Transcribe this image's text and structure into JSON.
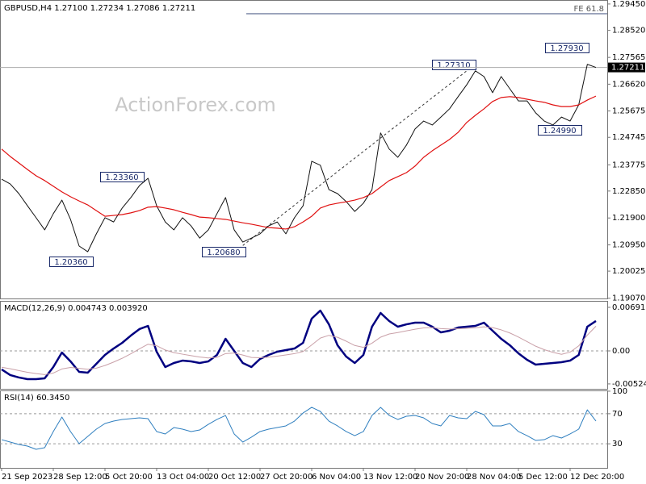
{
  "chart_data": [
    {
      "type": "line",
      "title": "GBPUSD,H4  1.27100 1.27234 1.27086 1.27211",
      "watermark": "ActionForex.com",
      "fe_label": "FE 61.8",
      "annotations": [
        "1.23360",
        "1.20360",
        "1.20680",
        "1.27310",
        "1.27930",
        "1.24990"
      ],
      "current_price": {
        "value": 1.27211,
        "label": "1.27211"
      },
      "categories": [
        "21 Sep 2023",
        null,
        null,
        null,
        null,
        null,
        "28 Sep 12:00",
        null,
        null,
        null,
        null,
        null,
        "5 Oct 20:00",
        null,
        null,
        null,
        null,
        null,
        "13 Oct 04:00",
        null,
        null,
        null,
        null,
        null,
        "20 Oct 12:00",
        null,
        null,
        null,
        null,
        null,
        "27 Oct 20:00",
        null,
        null,
        null,
        null,
        null,
        "6 Nov 04:00",
        null,
        null,
        null,
        null,
        null,
        "13 Nov 12:00",
        null,
        null,
        null,
        null,
        null,
        "20 Nov 20:00",
        null,
        null,
        null,
        null,
        null,
        "28 Nov 04:00",
        null,
        null,
        null,
        null,
        null,
        "5 Dec 12:00",
        null,
        null,
        null,
        null,
        null,
        "12 Dec 20:00",
        null,
        null,
        null
      ],
      "series": [
        {
          "color": "#111111",
          "values": [
            1.2327,
            1.231,
            1.2276,
            1.2233,
            1.2191,
            1.2148,
            1.2205,
            1.2253,
            1.2185,
            1.2091,
            1.2071,
            1.2134,
            1.2191,
            1.2176,
            1.2225,
            1.2262,
            1.2304,
            1.233,
            1.2233,
            1.2176,
            1.2148,
            1.2191,
            1.2162,
            1.2119,
            1.2148,
            1.2205,
            1.2262,
            1.2148,
            1.2105,
            1.2119,
            1.2134,
            1.2162,
            1.2176,
            1.2134,
            1.2191,
            1.2233,
            1.239,
            1.2376,
            1.229,
            1.2276,
            1.2248,
            1.2213,
            1.2242,
            1.229,
            1.249,
            1.2433,
            1.2404,
            1.2447,
            1.2504,
            1.2532,
            1.2518,
            1.2546,
            1.2575,
            1.2618,
            1.266,
            1.2709,
            1.2689,
            1.2632,
            1.2689,
            1.2646,
            1.2603,
            1.2603,
            1.2561,
            1.2532,
            1.2518,
            1.2546,
            1.2532,
            1.2589,
            1.2732,
            1.27211
          ]
        },
        {
          "color": "#e01010",
          "values": [
            1.2433,
            1.2407,
            1.2384,
            1.2361,
            1.2339,
            1.2322,
            1.2302,
            1.2282,
            1.2265,
            1.225,
            1.2236,
            1.2216,
            1.2196,
            1.2199,
            1.2202,
            1.2208,
            1.2216,
            1.2228,
            1.223,
            1.2225,
            1.2219,
            1.221,
            1.2202,
            1.2193,
            1.2191,
            1.2188,
            1.2185,
            1.2179,
            1.2173,
            1.2168,
            1.2162,
            1.2156,
            1.2154,
            1.2151,
            1.2159,
            1.2176,
            1.2196,
            1.2225,
            1.2236,
            1.2242,
            1.2247,
            1.2253,
            1.2262,
            1.2276,
            1.2299,
            1.2322,
            1.2336,
            1.235,
            1.2373,
            1.2404,
            1.2427,
            1.2447,
            1.2467,
            1.2492,
            1.2527,
            1.2552,
            1.2575,
            1.2601,
            1.2615,
            1.2618,
            1.2615,
            1.2609,
            1.2603,
            1.2598,
            1.2589,
            1.2583,
            1.2583,
            1.2589,
            1.2606,
            1.262
          ]
        }
      ],
      "ylim": [
        1.1906,
        1.2959
      ],
      "yticks": [
        {
          "value": 1.2945,
          "label": "1.29450"
        },
        {
          "value": 1.2852,
          "label": "1.28520"
        },
        1.27565,
        {
          "value": 1.2662,
          "label": "1.26620"
        },
        1.25675,
        1.24745,
        1.23775,
        {
          "value": 1.2285,
          "label": "1.22850"
        },
        {
          "value": 1.219,
          "label": "1.21900"
        },
        {
          "value": 1.2095,
          "label": "1.20950"
        },
        1.20025,
        {
          "value": 1.1907,
          "label": "1.19070"
        }
      ]
    },
    {
      "type": "line",
      "title": "MACD(12,26,9) 0.004743 0.003920",
      "series": [
        {
          "color": "#000080",
          "values": [
            -0.00294,
            -0.00384,
            -0.00422,
            -0.00448,
            -0.00448,
            -0.00435,
            -0.00256,
            -0.00026,
            -0.00166,
            -0.00333,
            -0.00346,
            -0.00205,
            -0.00064,
            0.00038,
            0.00128,
            0.00243,
            0.00346,
            0.00397,
            -0.00013,
            -0.00256,
            -0.00192,
            -0.00154,
            -0.00166,
            -0.00192,
            -0.00166,
            -0.00064,
            0.00192,
            0,
            -0.00192,
            -0.00256,
            -0.00128,
            -0.00064,
            -0.00013,
            0.00013,
            0.00038,
            0.00128,
            0.00512,
            0.0064,
            0.00422,
            0.0009,
            -0.0009,
            -0.00192,
            -0.00064,
            0.00384,
            0.00602,
            0.00474,
            0.00384,
            0.00422,
            0.00448,
            0.00448,
            0.00384,
            0.00294,
            0.0032,
            0.00371,
            0.00384,
            0.00397,
            0.00448,
            0.0032,
            0.00192,
            0.0009,
            -0.00038,
            -0.00141,
            -0.00218,
            -0.00205,
            -0.00192,
            -0.00179,
            -0.00154,
            -0.00064,
            0.00384,
            0.004743
          ]
        },
        {
          "color": "#c9a0a8",
          "values": [
            -0.00259,
            -0.00284,
            -0.00312,
            -0.00339,
            -0.00361,
            -0.00376,
            -0.00352,
            -0.00287,
            -0.00263,
            -0.00277,
            -0.00291,
            -0.00274,
            -0.00232,
            -0.00178,
            -0.00117,
            -0.00045,
            0.00033,
            0.00106,
            0.00082,
            0.00014,
            -0.00027,
            -0.00052,
            -0.00075,
            -0.00098,
            -0.00112,
            -0.00102,
            -0.00043,
            -0.00034,
            -0.00066,
            -0.00104,
            -0.00109,
            -0.001,
            -0.00083,
            -0.00064,
            -0.00044,
            -0.0001,
            0.00094,
            0.00203,
            0.00247,
            0.00216,
            0.00155,
            0.00086,
            0.00056,
            0.00122,
            0.00218,
            0.00269,
            0.00292,
            0.00318,
            0.00344,
            0.00365,
            0.00369,
            0.00354,
            0.00347,
            0.00352,
            0.00358,
            0.00366,
            0.00382,
            0.0037,
            0.00334,
            0.00285,
            0.0022,
            0.00148,
            0.00075,
            0.00019,
            -0.00023,
            -0.00054,
            -0.0002,
            0.0008,
            0.0025,
            0.00392
          ]
        }
      ],
      "ylim": [
        -0.00602,
        0.00794
      ],
      "yticks": [
        0.006915,
        {
          "value": 0,
          "label": "0.00"
        },
        -0.005241
      ],
      "levels": [
        0
      ]
    },
    {
      "type": "line",
      "title": "RSI(14) 60.3450",
      "series": [
        {
          "color": "#2f7fbf",
          "values": [
            35.5,
            32.3,
            29.1,
            27.0,
            22.7,
            24.8,
            46.3,
            65.6,
            46.3,
            30.2,
            39.8,
            49.5,
            57.0,
            60.2,
            62.4,
            63.4,
            64.5,
            63.4,
            46.3,
            43.1,
            51.6,
            49.5,
            46.3,
            48.4,
            55.9,
            62.4,
            67.7,
            43.1,
            32.3,
            38.8,
            46.3,
            49.5,
            51.6,
            53.8,
            60.2,
            71.0,
            78.5,
            73.1,
            60.2,
            53.8,
            46.3,
            40.9,
            46.3,
            67.7,
            78.5,
            67.7,
            62.4,
            66.7,
            67.7,
            64.5,
            57.0,
            53.8,
            67.7,
            64.5,
            63.4,
            73.1,
            68.8,
            53.8,
            53.8,
            57.0,
            46.3,
            40.9,
            34.5,
            35.5,
            40.9,
            37.7,
            43.1,
            49.5,
            75.2,
            60.345
          ]
        }
      ],
      "ylim": [
        -2,
        101
      ],
      "yticks": [
        100,
        70,
        30
      ],
      "levels": [
        70,
        30
      ]
    }
  ]
}
